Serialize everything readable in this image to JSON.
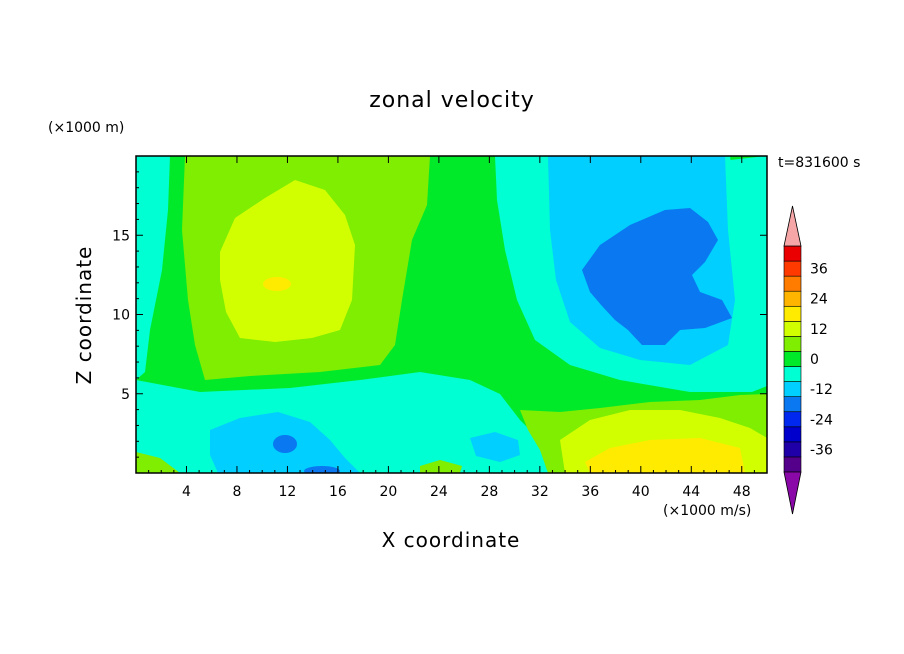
{
  "chart_data": {
    "type": "heatmap",
    "title": "zonal velocity",
    "xlabel": "X coordinate",
    "ylabel": "Z coordinate",
    "x_units": "(×1000 m/s)",
    "y_units": "(×1000 m)",
    "time_label": "t=831600 s",
    "xlim": [
      0,
      50
    ],
    "ylim": [
      0,
      20
    ],
    "x_ticks": [
      4,
      8,
      12,
      16,
      20,
      24,
      28,
      32,
      36,
      40,
      44,
      48
    ],
    "y_ticks": [
      5,
      10,
      15
    ],
    "colorbar": {
      "levels": [
        -42,
        -36,
        -30,
        -24,
        -18,
        -12,
        -6,
        0,
        6,
        12,
        18,
        24,
        30,
        36,
        42
      ],
      "tick_labels": [
        "36",
        "24",
        "12",
        "0",
        "-12",
        "-24",
        "-36"
      ],
      "colors": [
        "#55008a",
        "#1f00a8",
        "#0000cc",
        "#0028ee",
        "#0a78f0",
        "#00cfff",
        "#00ffd2",
        "#00ea2a",
        "#7fee00",
        "#d2ff00",
        "#ffeb00",
        "#ffb400",
        "#ff7c00",
        "#ff3a00",
        "#ea0000"
      ],
      "extend_min_color": "#8b08a8",
      "extend_max_color": "#f6a6a6"
    },
    "regions": [
      {
        "name": "positive core upper left",
        "center": [
          11,
          12
        ],
        "value": 12
      },
      {
        "name": "negative core upper right",
        "center": [
          41,
          12
        ],
        "value": -18
      },
      {
        "name": "positive core lower right",
        "center": [
          42,
          1
        ],
        "value": 18
      },
      {
        "name": "negative spot lower left",
        "center": [
          12,
          1.8
        ],
        "value": -18
      }
    ]
  }
}
